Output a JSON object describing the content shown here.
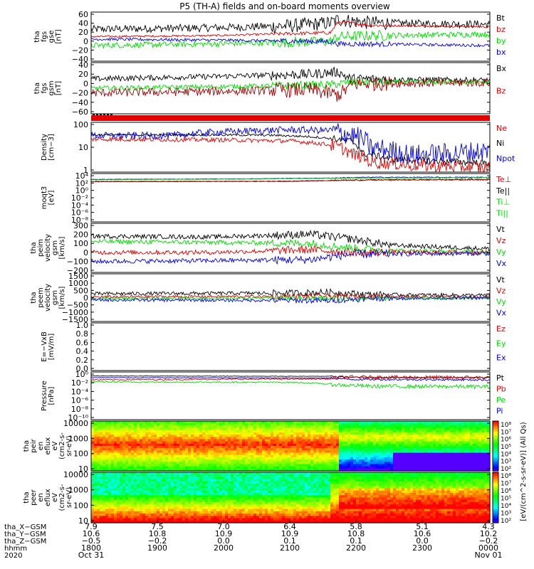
{
  "title": "P5 (TH-A) fields and on-board moments overview",
  "colors": {
    "black": "#000000",
    "red": "#e00000",
    "green": "#00dd00",
    "blue": "#0000e6",
    "darkred": "#990000",
    "teal": "#00a0a0"
  },
  "chart_data": [
    {
      "type": "line",
      "ylabel": [
        "tha",
        "fgs",
        "gse",
        "[nT]"
      ],
      "ylim": [
        -40,
        60
      ],
      "yticks": [
        "60",
        "40",
        "20",
        "0",
        "−20",
        "−40"
      ],
      "legend": [
        {
          "name": "Bt",
          "color": "#000000"
        },
        {
          "name": "bz",
          "color": "#e00000"
        },
        {
          "name": "by",
          "color": "#00dd00"
        },
        {
          "name": "bx",
          "color": "#0000e6"
        }
      ],
      "series": [
        {
          "name": "Bt",
          "color": "#000000",
          "noise": 8,
          "values": [
            [
              0,
              25
            ],
            [
              0.3,
              28
            ],
            [
              0.5,
              32
            ],
            [
              0.6,
              38
            ],
            [
              0.62,
              45
            ],
            [
              0.65,
              42
            ],
            [
              0.7,
              38
            ],
            [
              1,
              35
            ]
          ]
        },
        {
          "name": "bz",
          "color": "#e00000",
          "noise": 2,
          "values": [
            [
              0,
              10
            ],
            [
              0.3,
              12
            ],
            [
              0.6,
              18
            ],
            [
              0.62,
              40
            ],
            [
              0.7,
              33
            ],
            [
              1,
              30
            ]
          ]
        },
        {
          "name": "by",
          "color": "#00dd00",
          "noise": 6,
          "values": [
            [
              0,
              -8
            ],
            [
              0.3,
              -5
            ],
            [
              0.6,
              0
            ],
            [
              0.62,
              10
            ],
            [
              0.7,
              12
            ],
            [
              1,
              15
            ]
          ]
        },
        {
          "name": "bx",
          "color": "#0000e6",
          "noise": 3,
          "values": [
            [
              0,
              5
            ],
            [
              0.3,
              3
            ],
            [
              0.6,
              0
            ],
            [
              0.62,
              -5
            ],
            [
              0.7,
              -5
            ],
            [
              1,
              -8
            ]
          ]
        }
      ]
    },
    {
      "type": "line",
      "ylabel": [
        "tha",
        "fgs",
        "gsm",
        "[nT]"
      ],
      "ylim": [
        -70,
        40
      ],
      "yticks": [
        "40",
        "20",
        "0",
        "−20",
        "−40",
        "−60"
      ],
      "legend": [
        {
          "name": "Bx",
          "color": "#000000"
        },
        {
          "name": "Bz",
          "color": "#e00000"
        }
      ],
      "series": [
        {
          "name": "Bx",
          "color": "#000000",
          "noise": 6,
          "values": [
            [
              0,
              5
            ],
            [
              0.3,
              10
            ],
            [
              0.55,
              15
            ],
            [
              0.62,
              20
            ],
            [
              0.65,
              5
            ],
            [
              1,
              2
            ]
          ]
        },
        {
          "name": "By",
          "color": "#00dd00",
          "noise": 5,
          "values": [
            [
              0,
              -15
            ],
            [
              0.3,
              -12
            ],
            [
              0.6,
              -8
            ],
            [
              0.65,
              -2
            ],
            [
              1,
              -2
            ]
          ]
        },
        {
          "name": "Bz",
          "color": "#990000",
          "noise": 9,
          "values": [
            [
              0,
              -25
            ],
            [
              0.3,
              -22
            ],
            [
              0.55,
              -18
            ],
            [
              0.62,
              -30
            ],
            [
              0.66,
              -5
            ],
            [
              1,
              -3
            ]
          ]
        }
      ]
    },
    {
      "type": "heatmap",
      "note": "flag strip",
      "color": "#e00000"
    },
    {
      "type": "line",
      "ylabel": [
        "Density",
        "[cm−3]"
      ],
      "scale": "log",
      "ylim": [
        0.1,
        300
      ],
      "yticks": [
        "100",
        "10",
        "1"
      ],
      "legend": [
        {
          "name": "Ne",
          "color": "#e00000"
        },
        {
          "name": "Ni",
          "color": "#000000"
        },
        {
          "name": "Npot",
          "color": "#0000e6"
        }
      ],
      "series": [
        {
          "name": "Ni",
          "color": "#000000",
          "noise": 0.08,
          "values": [
            [
              0,
              40
            ],
            [
              0.3,
              40
            ],
            [
              0.45,
              38
            ],
            [
              0.55,
              30
            ],
            [
              0.65,
              15
            ],
            [
              0.68,
              2
            ],
            [
              0.75,
              0.8
            ],
            [
              1,
              0.4
            ]
          ]
        },
        {
          "name": "Npot",
          "color": "#0000e6",
          "noise": 0.25,
          "values": [
            [
              0,
              35
            ],
            [
              0.2,
              35
            ],
            [
              0.3,
              60
            ],
            [
              0.5,
              90
            ],
            [
              0.6,
              80
            ],
            [
              0.65,
              40
            ],
            [
              0.7,
              5
            ],
            [
              0.8,
              1.5
            ],
            [
              0.9,
              2
            ],
            [
              1,
              3
            ]
          ]
        },
        {
          "name": "Ne",
          "color": "#e00000",
          "noise": 0.15,
          "values": [
            [
              0,
              20
            ],
            [
              0.3,
              18
            ],
            [
              0.5,
              15
            ],
            [
              0.6,
              8
            ],
            [
              0.65,
              2
            ],
            [
              0.7,
              0.5
            ],
            [
              0.8,
              0.3
            ],
            [
              1,
              0.2
            ]
          ]
        }
      ]
    },
    {
      "type": "line",
      "ylabel": [
        "moqt3",
        "[eV]"
      ],
      "scale": "log",
      "ylim": [
        1e-09,
        100000.0
      ],
      "yticks": [
        "10⁴",
        "10²",
        "10⁰",
        "10⁻²",
        "10⁻⁴",
        "10⁻⁶",
        "10⁻⁸"
      ],
      "legend": [
        {
          "name": "Te⊥",
          "color": "#e00000"
        },
        {
          "name": "Te||",
          "color": "#000000"
        },
        {
          "name": "Ti⊥",
          "color": "#00dd00"
        },
        {
          "name": "Ti||",
          "color": "#00dd00"
        }
      ],
      "series": [
        {
          "name": "Ti",
          "color": "#0000e6",
          "noise": 0.05,
          "values": [
            [
              0,
              2000
            ],
            [
              0.4,
              3000
            ],
            [
              0.6,
              5000
            ],
            [
              0.7,
              8000
            ],
            [
              1,
              8000
            ]
          ]
        },
        {
          "name": "Ti||",
          "color": "#00dd00",
          "noise": 0.05,
          "values": [
            [
              0,
              1500
            ],
            [
              0.4,
              2500
            ],
            [
              0.6,
              4000
            ],
            [
              1,
              6000
            ]
          ]
        },
        {
          "name": "Te",
          "color": "#000000",
          "noise": 0.05,
          "values": [
            [
              0,
              500
            ],
            [
              0.5,
              600
            ],
            [
              0.7,
              1500
            ],
            [
              1,
              2000
            ]
          ]
        },
        {
          "name": "Te⊥",
          "color": "#e00000",
          "noise": 0.05,
          "values": [
            [
              0,
              400
            ],
            [
              0.5,
              500
            ],
            [
              0.7,
              1200
            ],
            [
              1,
              1500
            ]
          ]
        }
      ]
    },
    {
      "type": "line",
      "ylabel": [
        "tha",
        "peim",
        "velocity",
        "gsm",
        "[km/s]"
      ],
      "ylim": [
        -220,
        320
      ],
      "yticks": [
        "300",
        "200",
        "100",
        "0",
        "−100",
        "−200"
      ],
      "legend": [
        {
          "name": "Vt",
          "color": "#000000"
        },
        {
          "name": "Vz",
          "color": "#e00000"
        },
        {
          "name": "Vy",
          "color": "#00dd00"
        },
        {
          "name": "Vx",
          "color": "#0000e6"
        }
      ],
      "series": [
        {
          "name": "Vt",
          "color": "#000000",
          "noise": 25,
          "values": [
            [
              0,
              180
            ],
            [
              0.3,
              170
            ],
            [
              0.55,
              200
            ],
            [
              0.65,
              150
            ],
            [
              0.75,
              80
            ],
            [
              1,
              40
            ]
          ]
        },
        {
          "name": "Vy",
          "color": "#00dd00",
          "noise": 25,
          "values": [
            [
              0,
              120
            ],
            [
              0.3,
              110
            ],
            [
              0.55,
              100
            ],
            [
              0.65,
              50
            ],
            [
              0.75,
              20
            ],
            [
              1,
              0
            ]
          ]
        },
        {
          "name": "Vz",
          "color": "#e00000",
          "noise": 25,
          "values": [
            [
              0,
              0
            ],
            [
              0.3,
              0
            ],
            [
              0.55,
              30
            ],
            [
              0.65,
              0
            ],
            [
              1,
              0
            ]
          ]
        },
        {
          "name": "Vx",
          "color": "#0000e6",
          "noise": 25,
          "values": [
            [
              0,
              -100
            ],
            [
              0.3,
              -90
            ],
            [
              0.55,
              -80
            ],
            [
              0.65,
              -20
            ],
            [
              1,
              -10
            ]
          ]
        }
      ]
    },
    {
      "type": "line",
      "ylabel": [
        "tha",
        "peem",
        "velocity",
        "gsm",
        "[km/s]"
      ],
      "ylim": [
        -1550,
        1550
      ],
      "yticks": [
        "1500",
        "1000",
        "500",
        "0",
        "−500",
        "−1000",
        "−1500"
      ],
      "legend": [
        {
          "name": "Vt",
          "color": "#000000"
        },
        {
          "name": "Vz",
          "color": "#e00000"
        },
        {
          "name": "Vy",
          "color": "#00dd00"
        },
        {
          "name": "Vx",
          "color": "#0000e6"
        }
      ],
      "series": [
        {
          "name": "Vt",
          "color": "#000000",
          "noise": 120,
          "values": [
            [
              0,
              250
            ],
            [
              0.5,
              300
            ],
            [
              0.6,
              350
            ],
            [
              0.7,
              200
            ],
            [
              1,
              150
            ]
          ]
        },
        {
          "name": "Vz",
          "color": "#e00000",
          "noise": 90,
          "values": [
            [
              0,
              50
            ],
            [
              0.5,
              80
            ],
            [
              0.6,
              100
            ],
            [
              1,
              30
            ]
          ]
        },
        {
          "name": "Vy",
          "color": "#00dd00",
          "noise": 90,
          "values": [
            [
              0,
              -50
            ],
            [
              0.5,
              -30
            ],
            [
              0.6,
              -60
            ],
            [
              1,
              -20
            ]
          ]
        },
        {
          "name": "Vx",
          "color": "#0000e6",
          "noise": 100,
          "values": [
            [
              0,
              -150
            ],
            [
              0.5,
              -180
            ],
            [
              0.6,
              -200
            ],
            [
              0.7,
              -50
            ],
            [
              1,
              -20
            ]
          ]
        }
      ]
    },
    {
      "type": "line",
      "ylabel": [
        "E=−VxB",
        "[mV/m]"
      ],
      "ylim": [
        0,
        1
      ],
      "yticks": [
        "1.0",
        "0.8",
        "0.6",
        "0.4",
        "0.2",
        "0.0"
      ],
      "legend": [
        {
          "name": "Ez",
          "color": "#e00000"
        },
        {
          "name": "Ey",
          "color": "#00dd00"
        },
        {
          "name": "Ex",
          "color": "#0000e6"
        }
      ],
      "series": []
    },
    {
      "type": "line",
      "ylabel": [
        "Pressure",
        "[nPa]"
      ],
      "scale": "log",
      "ylim": [
        1e-10,
        10
      ],
      "yticks": [
        "10⁰",
        "10⁻²",
        "10⁻⁴",
        "10⁻⁶",
        "10⁻⁸",
        "10⁻¹⁰"
      ],
      "legend": [
        {
          "name": "Pt",
          "color": "#000000"
        },
        {
          "name": "Pb",
          "color": "#e00000"
        },
        {
          "name": "Pe",
          "color": "#00dd00"
        },
        {
          "name": "Pi",
          "color": "#0000e6"
        }
      ],
      "series": [
        {
          "name": "Pt",
          "color": "#000000",
          "noise": 0.05,
          "values": [
            [
              0,
              1.2
            ],
            [
              0.6,
              1.0
            ],
            [
              0.65,
              0.6
            ],
            [
              1,
              0.5
            ]
          ]
        },
        {
          "name": "Pi",
          "color": "#0000e6",
          "noise": 0.08,
          "values": [
            [
              0,
              0.5
            ],
            [
              0.6,
              0.4
            ],
            [
              0.65,
              0.2
            ],
            [
              1,
              0.15
            ]
          ]
        },
        {
          "name": "Pb",
          "color": "#e00000",
          "noise": 0.15,
          "values": [
            [
              0,
              0.15
            ],
            [
              0.3,
              0.2
            ],
            [
              0.6,
              0.25
            ],
            [
              0.63,
              0.6
            ],
            [
              1,
              0.5
            ]
          ]
        },
        {
          "name": "Pe",
          "color": "#00dd00",
          "noise": 0.15,
          "values": [
            [
              0,
              0.05
            ],
            [
              0.5,
              0.04
            ],
            [
              0.62,
              0.01
            ],
            [
              0.7,
              0.005
            ],
            [
              1,
              0.004
            ]
          ]
        }
      ]
    },
    {
      "type": "heatmap",
      "ylabel": [
        "tha",
        "peir",
        "en",
        "eflux",
        "eV",
        "(cm2-s-",
        "sr-eV)"
      ],
      "scale": "log",
      "ylim": [
        10,
        20000
      ],
      "yticks": [
        "10000",
        "1000",
        "100",
        "10"
      ]
    },
    {
      "type": "heatmap",
      "ylabel": [
        "tha",
        "peer",
        "en",
        "eflux",
        "eV",
        "(cm2-s-",
        "sr-eV)"
      ],
      "scale": "log",
      "ylim": [
        10,
        20000
      ],
      "yticks": [
        "10000",
        "1000",
        "100",
        "10"
      ]
    }
  ],
  "colorbar": {
    "label": "[eV/(cm^2-s-sr-eV)] (All Qs)",
    "ticks": [
      "10⁸",
      "10⁷",
      "10⁶",
      "10⁵",
      "10⁴",
      "10³",
      "10²"
    ],
    "ticks_lower": [
      "10⁸",
      "10⁷",
      "10⁶",
      "10⁵",
      "10⁴",
      "10³",
      "10²"
    ]
  },
  "xaxis": {
    "rows": [
      {
        "label": "tha_X−GSM",
        "values": [
          "7.9",
          "7.5",
          "7.0",
          "6.4",
          "5.8",
          "5.1",
          "4.3"
        ]
      },
      {
        "label": "tha_Y−GSM",
        "values": [
          "10.6",
          "10.8",
          "10.9",
          "10.9",
          "10.8",
          "10.6",
          "10.2"
        ]
      },
      {
        "label": "tha_Z−GSM",
        "values": [
          "−0.5",
          "−0.2",
          "0.0",
          "0.1",
          "0.1",
          "0.0",
          "−0.2"
        ]
      },
      {
        "label": "hhmm",
        "values": [
          "1800",
          "1900",
          "2000",
          "2100",
          "2200",
          "2300",
          "0000"
        ]
      }
    ],
    "year": "2020",
    "date_start": "Oct 31",
    "date_end": "Nov 01"
  }
}
